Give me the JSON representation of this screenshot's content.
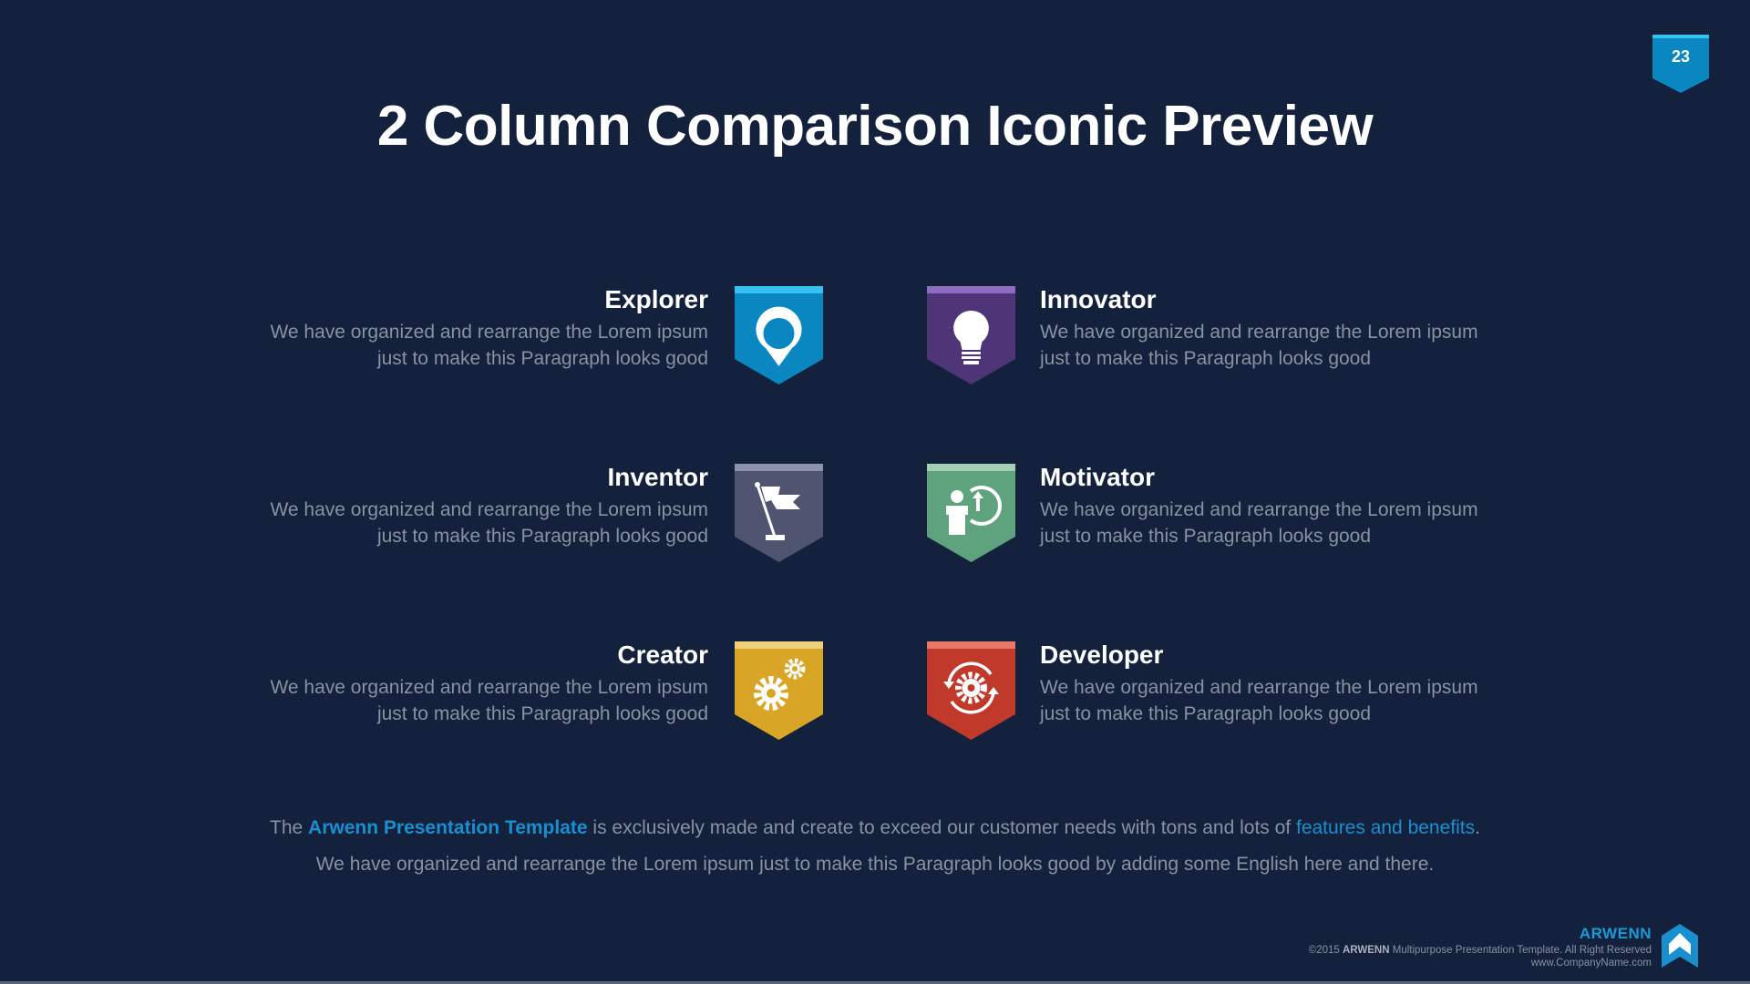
{
  "slide": {
    "title": "2 Column Comparison Iconic Preview",
    "page_number": "23"
  },
  "items": [
    {
      "title": "Explorer",
      "line1": "We have organized and rearrange the Lorem ipsum",
      "line2": "just to make this Paragraph looks good",
      "icon": "map-pin-icon",
      "color": "#0a87c0",
      "bar": "#35c2f0"
    },
    {
      "title": "Innovator",
      "line1": "We have organized and rearrange the Lorem ipsum",
      "line2": "just to make this Paragraph looks good",
      "icon": "lightbulb-icon",
      "color": "#4e3578",
      "bar": "#8c6bc0"
    },
    {
      "title": "Inventor",
      "line1": "We have organized and rearrange the Lorem ipsum",
      "line2": "just to make this Paragraph looks good",
      "icon": "flag-icon",
      "color": "#4f5570",
      "bar": "#8d93ab"
    },
    {
      "title": "Motivator",
      "line1": "We have organized and rearrange the Lorem ipsum",
      "line2": "just to make this Paragraph looks good",
      "icon": "person-growth-icon",
      "color": "#5ea37d",
      "bar": "#a3cfb3"
    },
    {
      "title": "Creator",
      "line1": "We have organized and rearrange the Lorem ipsum",
      "line2": "just to make this Paragraph looks good",
      "icon": "gears-icon",
      "color": "#d9a526",
      "bar": "#efd07a"
    },
    {
      "title": "Developer",
      "line1": "We have organized and rearrange the Lorem ipsum",
      "line2": "just to make this Paragraph looks good",
      "icon": "gear-cycle-icon",
      "color": "#c0392b",
      "bar": "#e8786a"
    }
  ],
  "footer": {
    "line1_a": "The ",
    "line1_link1": "Arwenn Presentation Template",
    "line1_b": " is exclusively made and create to exceed our customer needs with tons and lots of ",
    "line1_link2": "features and benefits",
    "line1_c": ".",
    "line2": "We have organized and rearrange the Lorem ipsum just to make this Paragraph looks good by adding some English here and there."
  },
  "brand": {
    "logo_text": "ARWENN",
    "copyright_a": "©2015 ",
    "copyright_brand": "ARWENN",
    "copyright_b": " Multipurpose Presentation Template. All Right Reserved",
    "website": "www.CompanyName.com"
  },
  "colors": {
    "background": "#13213d",
    "accent": "#1a8fd0",
    "body_text": "#8a91a0"
  }
}
